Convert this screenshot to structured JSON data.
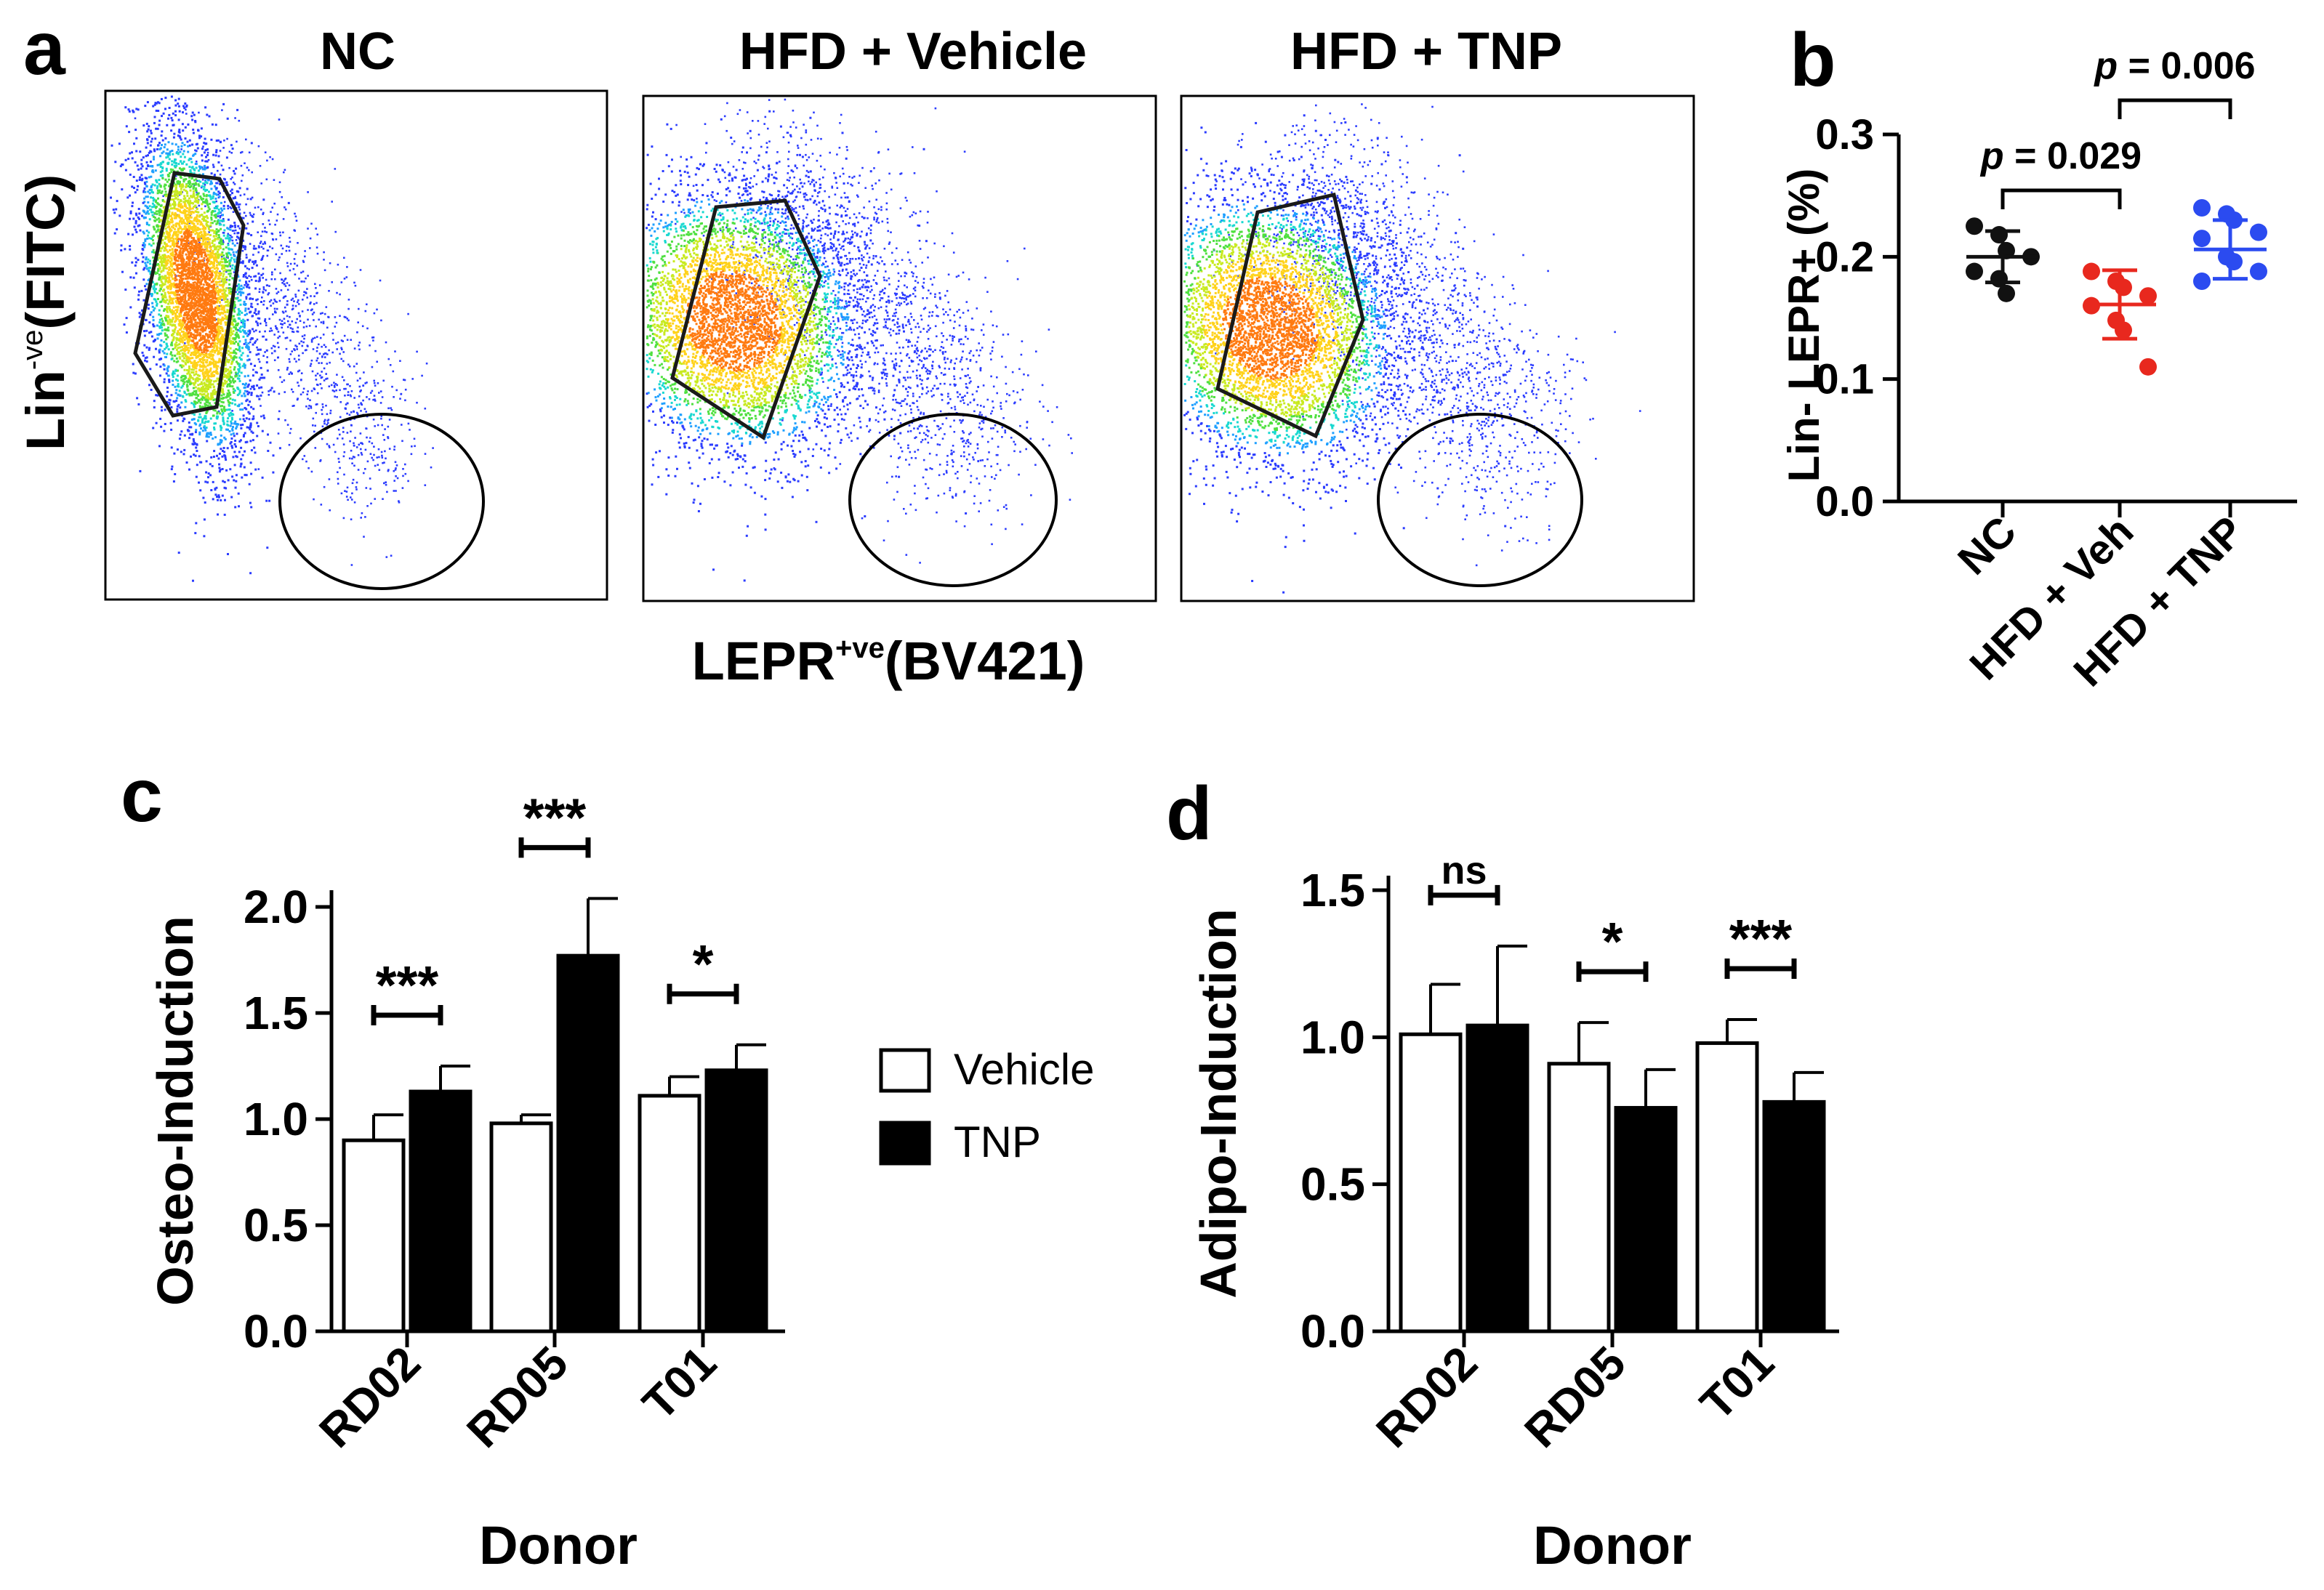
{
  "panel_labels": {
    "a": "a",
    "b": "b",
    "c": "c",
    "d": "d"
  },
  "panel_a": {
    "y_label_main": "Lin",
    "y_label_sup": "-ve",
    "y_label_channel": "(FITC)",
    "x_label_main": "LEPR",
    "x_label_sup": "+ve",
    "x_label_channel": "(BV421)",
    "plots": [
      {
        "title": "NC"
      },
      {
        "title": "HFD + Vehicle"
      },
      {
        "title": "HFD + TNP"
      }
    ]
  },
  "chart_data": [
    {
      "panel": "b",
      "type": "scatter",
      "ylabel": "Lin- LEPR+ (%)",
      "xlabel": "",
      "ylim": [
        0,
        0.3
      ],
      "yticks": [
        "0.0",
        "0.1",
        "0.2",
        "0.3"
      ],
      "categories": [
        "NC",
        "HFD + Veh",
        "HFD + TNP"
      ],
      "series": [
        {
          "name": "NC",
          "color": "#111111",
          "points": [
            0.225,
            0.218,
            0.205,
            0.2,
            0.188,
            0.182,
            0.17
          ],
          "mean": 0.2,
          "sd": 0.021
        },
        {
          "name": "HFD + Veh",
          "color": "#e8281e",
          "points": [
            0.188,
            0.18,
            0.175,
            0.168,
            0.16,
            0.148,
            0.14,
            0.11
          ],
          "mean": 0.161,
          "sd": 0.028
        },
        {
          "name": "HFD + TNP",
          "color": "#2b4bf0",
          "points": [
            0.24,
            0.235,
            0.23,
            0.22,
            0.215,
            0.2,
            0.196,
            0.188,
            0.18
          ],
          "mean": 0.206,
          "sd": 0.024
        }
      ],
      "comparisons": [
        {
          "from": "NC",
          "to": "HFD + Veh",
          "p_prefix": "p",
          "p_rest": " = 0.029"
        },
        {
          "from": "HFD + Veh",
          "to": "HFD + TNP",
          "p_prefix": "p",
          "p_rest": " = 0.006"
        }
      ]
    },
    {
      "panel": "c",
      "type": "bar",
      "ylabel": "Osteo-Induction",
      "xlabel": "Donor",
      "ylim": [
        0,
        2.0
      ],
      "yticks": [
        "0.0",
        "0.5",
        "1.0",
        "1.5",
        "2.0"
      ],
      "categories": [
        "RD02",
        "RD05",
        "T01"
      ],
      "series": [
        {
          "name": "Vehicle",
          "fill": "#ffffff",
          "values": [
            0.9,
            0.98,
            1.11
          ],
          "errors": [
            0.12,
            0.04,
            0.09
          ]
        },
        {
          "name": "TNP",
          "fill": "#000000",
          "values": [
            1.13,
            1.77,
            1.23
          ],
          "errors": [
            0.12,
            0.27,
            0.12
          ]
        }
      ],
      "significance": [
        "***",
        "***",
        "*"
      ]
    },
    {
      "panel": "d",
      "type": "bar",
      "ylabel": "Adipo-Induction",
      "xlabel": "Donor",
      "ylim": [
        0,
        1.5
      ],
      "yticks": [
        "0.0",
        "0.5",
        "1.0",
        "1.5"
      ],
      "categories": [
        "RD02",
        "RD05",
        "T01"
      ],
      "series": [
        {
          "name": "Vehicle",
          "fill": "#ffffff",
          "values": [
            1.01,
            0.91,
            0.98
          ],
          "errors": [
            0.17,
            0.14,
            0.08
          ]
        },
        {
          "name": "TNP",
          "fill": "#000000",
          "values": [
            1.04,
            0.76,
            0.78
          ],
          "errors": [
            0.27,
            0.13,
            0.1
          ]
        }
      ],
      "significance": [
        "ns",
        "*",
        "***"
      ]
    }
  ],
  "legend": {
    "items": [
      {
        "label": "Vehicle",
        "fill": "#ffffff"
      },
      {
        "label": "TNP",
        "fill": "#000000"
      }
    ]
  }
}
